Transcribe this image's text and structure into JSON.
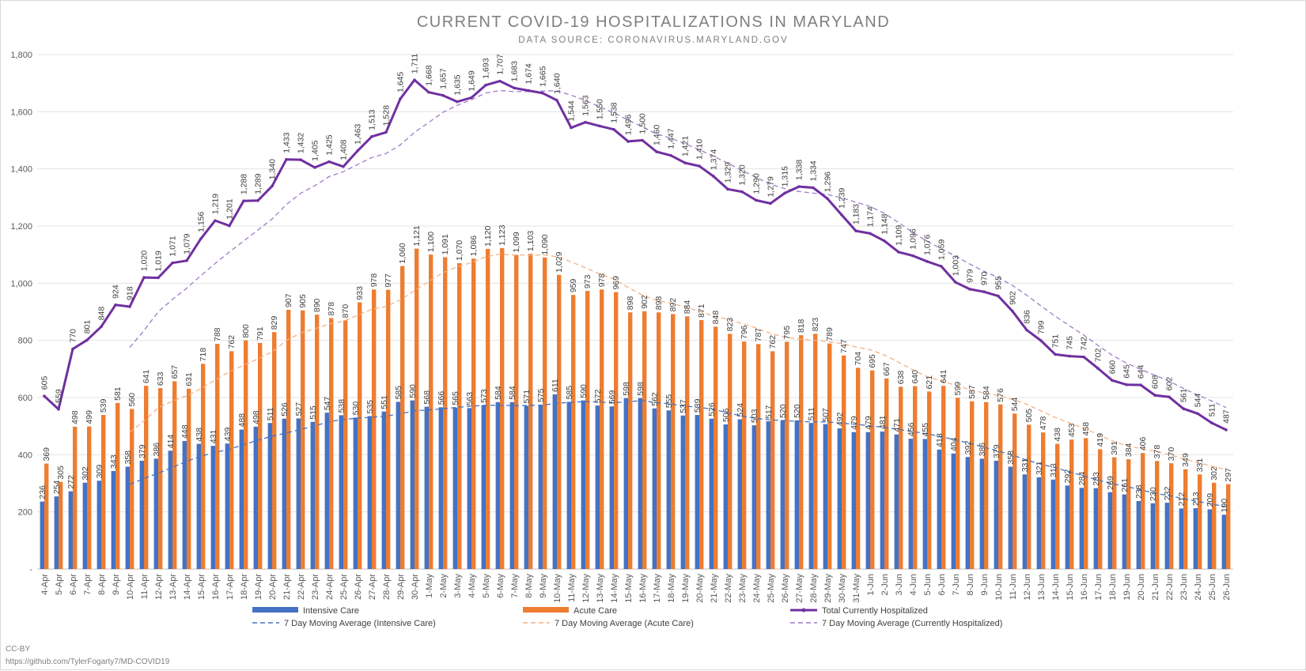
{
  "chart_data": {
    "type": "bar",
    "title": "CURRENT COVID-19 HOSPITALIZATIONS IN MARYLAND",
    "subtitle": "DATA SOURCE: CORONAVIRUS.MARYLAND.GOV",
    "credit": "CC-BY",
    "source_url": "https://github.com/TylerFogarty7/MD-COVID19",
    "ylim": [
      0,
      1800
    ],
    "y_ticks": [
      0,
      200,
      400,
      600,
      800,
      1000,
      1200,
      1400,
      1600,
      1800
    ],
    "y_tick_labels": [
      "-",
      "200",
      "400",
      "600",
      "800",
      "1,000",
      "1,200",
      "1,400",
      "1,600",
      "1,800"
    ],
    "grid": true,
    "legend_position": "bottom",
    "categories": [
      "4-Apr",
      "5-Apr",
      "6-Apr",
      "7-Apr",
      "8-Apr",
      "9-Apr",
      "10-Apr",
      "11-Apr",
      "12-Apr",
      "13-Apr",
      "14-Apr",
      "15-Apr",
      "16-Apr",
      "17-Apr",
      "18-Apr",
      "19-Apr",
      "20-Apr",
      "21-Apr",
      "22-Apr",
      "23-Apr",
      "24-Apr",
      "25-Apr",
      "26-Apr",
      "27-Apr",
      "28-Apr",
      "29-Apr",
      "30-Apr",
      "1-May",
      "2-May",
      "3-May",
      "4-May",
      "5-May",
      "6-May",
      "7-May",
      "8-May",
      "9-May",
      "10-May",
      "11-May",
      "12-May",
      "13-May",
      "14-May",
      "15-May",
      "16-May",
      "17-May",
      "18-May",
      "19-May",
      "20-May",
      "21-May",
      "22-May",
      "23-May",
      "24-May",
      "25-May",
      "26-May",
      "27-May",
      "28-May",
      "29-May",
      "30-May",
      "31-May",
      "1-Jun",
      "2-Jun",
      "3-Jun",
      "4-Jun",
      "5-Jun",
      "6-Jun",
      "7-Jun",
      "8-Jun",
      "9-Jun",
      "10-Jun",
      "11-Jun",
      "12-Jun",
      "13-Jun",
      "14-Jun",
      "15-Jun",
      "16-Jun",
      "17-Jun",
      "18-Jun",
      "19-Jun",
      "20-Jun",
      "21-Jun",
      "22-Jun",
      "23-Jun",
      "24-Jun",
      "25-Jun",
      "26-Jun"
    ],
    "series": [
      {
        "name": "Intensive Care",
        "kind": "bar",
        "color": "#4472c4",
        "values": [
          236,
          254,
          272,
          302,
          309,
          343,
          358,
          379,
          386,
          414,
          448,
          438,
          431,
          439,
          488,
          498,
          511,
          526,
          527,
          515,
          547,
          538,
          530,
          535,
          551,
          585,
          590,
          568,
          566,
          565,
          563,
          573,
          584,
          584,
          571,
          575,
          611,
          585,
          590,
          572,
          569,
          598,
          598,
          562,
          555,
          537,
          539,
          526,
          506,
          524,
          503,
          517,
          520,
          520,
          511,
          507,
          492,
          479,
          479,
          481,
          471,
          456,
          455,
          418,
          404,
          392,
          386,
          379,
          358,
          331,
          321,
          313,
          292,
          284,
          283,
          269,
          261,
          238,
          230,
          232,
          212,
          213,
          209,
          190
        ]
      },
      {
        "name": "Acute Care",
        "kind": "bar",
        "color": "#ed7d31",
        "values": [
          369,
          305,
          498,
          499,
          539,
          581,
          560,
          641,
          633,
          657,
          631,
          718,
          788,
          762,
          800,
          791,
          829,
          907,
          905,
          890,
          878,
          870,
          933,
          978,
          977,
          1060,
          1121,
          1100,
          1091,
          1070,
          1086,
          1120,
          1123,
          1099,
          1103,
          1090,
          1029,
          959,
          973,
          978,
          969,
          898,
          902,
          898,
          892,
          884,
          871,
          848,
          823,
          796,
          787,
          762,
          795,
          818,
          823,
          789,
          747,
          704,
          695,
          667,
          638,
          640,
          621,
          641,
          599,
          587,
          584,
          576,
          544,
          505,
          478,
          438,
          453,
          458,
          419,
          391,
          384,
          406,
          378,
          370,
          349,
          331,
          302,
          297
        ]
      },
      {
        "name": "Total Currently Hospitalized",
        "kind": "line",
        "color": "#7030a0",
        "values": [
          605,
          559,
          770,
          801,
          848,
          924,
          918,
          1020,
          1019,
          1071,
          1079,
          1156,
          1219,
          1201,
          1288,
          1289,
          1340,
          1433,
          1432,
          1405,
          1425,
          1408,
          1463,
          1513,
          1528,
          1645,
          1711,
          1668,
          1657,
          1635,
          1649,
          1693,
          1707,
          1683,
          1674,
          1665,
          1640,
          1544,
          1563,
          1550,
          1538,
          1496,
          1500,
          1460,
          1447,
          1421,
          1410,
          1374,
          1329,
          1320,
          1290,
          1279,
          1315,
          1338,
          1334,
          1296,
          1239,
          1183,
          1174,
          1148,
          1109,
          1096,
          1076,
          1059,
          1003,
          979,
          970,
          955,
          902,
          836,
          799,
          751,
          745,
          742,
          702,
          660,
          645,
          644,
          608,
          602,
          561,
          544,
          511,
          487
        ],
        "labels": [
          "605",
          "559",
          "770",
          "801",
          "848",
          "924",
          "918",
          "1,020",
          "1,019",
          "1,071",
          "1,079",
          "1,156",
          "1,219",
          "1,201",
          "1,288",
          "1,289",
          "1,340",
          "1,433",
          "1,432",
          "1,405",
          "1,425",
          "1,408",
          "1,463",
          "1,513",
          "1,528",
          "1,645",
          "1,711",
          "1,668",
          "1,657",
          "1,635",
          "1,649",
          "1,693",
          "1,707",
          "1,683",
          "1,674",
          "1,665",
          "1,640",
          "1,544",
          "1,563",
          "1,550",
          "1,538",
          "1,496",
          "1,500",
          "1,460",
          "1,447",
          "1,421",
          "1,410",
          "1,374",
          "1,329",
          "1,320",
          "1,290",
          "1,279",
          "1,315",
          "1,338",
          "1,334",
          "1,296",
          "1,239",
          "1,183",
          "1,174",
          "1,148",
          "1,109",
          "1,096",
          "1,076",
          "1,059",
          "1,003",
          "979",
          "970",
          "955",
          "902",
          "836",
          "799",
          "751",
          "745",
          "742",
          "702",
          "660",
          "645",
          "644",
          "608",
          "602",
          "561",
          "544",
          "511",
          "487"
        ]
      },
      {
        "name": "7 Day Moving Average (Intensive Care)",
        "kind": "trend",
        "color": "#4472c4",
        "source": 0,
        "window": 7
      },
      {
        "name": "7 Day Moving Average (Acute Care)",
        "kind": "trend",
        "color": "#f4b183",
        "source": 1,
        "window": 7
      },
      {
        "name": "7 Day Moving Average (Currently Hospitalized)",
        "kind": "trend",
        "color": "#9e7cc7",
        "source": 2,
        "window": 7
      }
    ]
  }
}
